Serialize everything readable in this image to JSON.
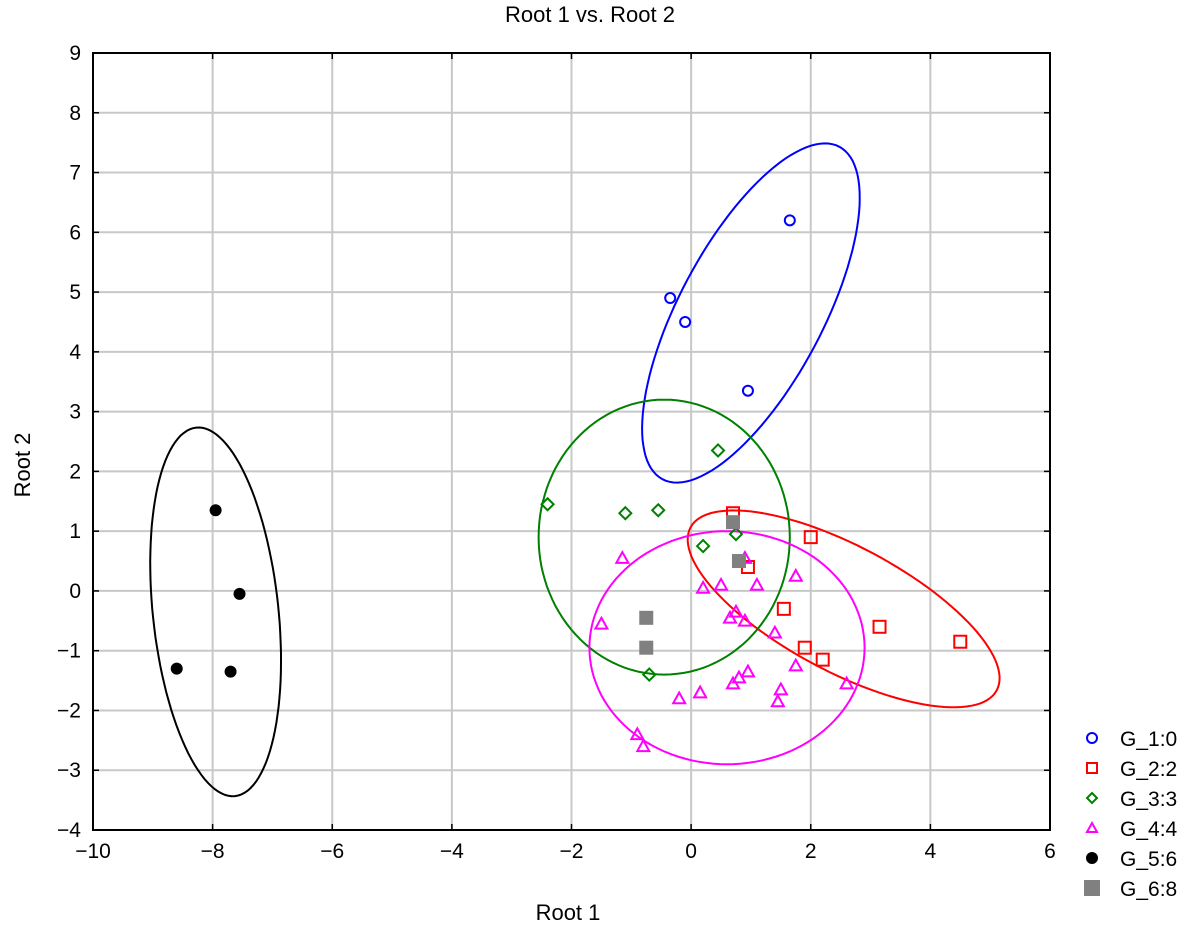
{
  "chart_data": {
    "type": "scatter",
    "title": "Root 1 vs. Root 2",
    "xlabel": "Root 1",
    "ylabel": "Root 2",
    "xlim": [
      -10,
      6
    ],
    "ylim": [
      -4,
      9
    ],
    "xticks": [
      -10,
      -8,
      -6,
      -4,
      -2,
      0,
      2,
      4,
      6
    ],
    "yticks": [
      -4,
      -3,
      -2,
      -1,
      0,
      1,
      2,
      3,
      4,
      5,
      6,
      7,
      8,
      9
    ],
    "grid": true,
    "legend_position": "bottom-right outside",
    "series": [
      {
        "name": "G_1:0",
        "color": "#0000ff",
        "marker": "circle",
        "filled": false,
        "points": [
          [
            -0.35,
            4.9
          ],
          [
            -0.1,
            4.5
          ],
          [
            0.95,
            3.35
          ],
          [
            1.65,
            6.2
          ]
        ],
        "ellipse": {
          "cx": 1.0,
          "cy": 4.65,
          "rx": 3.15,
          "ry": 1.2,
          "angle": 62
        }
      },
      {
        "name": "G_2:2",
        "color": "#ff0000",
        "marker": "square",
        "filled": false,
        "points": [
          [
            0.7,
            1.3
          ],
          [
            0.95,
            0.4
          ],
          [
            2.0,
            0.9
          ],
          [
            1.55,
            -0.3
          ],
          [
            1.9,
            -0.95
          ],
          [
            2.2,
            -1.15
          ],
          [
            3.15,
            -0.6
          ],
          [
            4.5,
            -0.85
          ]
        ],
        "ellipse": {
          "cx": 2.55,
          "cy": -0.3,
          "rx": 2.9,
          "ry": 1.05,
          "angle": -28
        }
      },
      {
        "name": "G_3:3",
        "color": "#008000",
        "marker": "diamond",
        "filled": false,
        "points": [
          [
            -2.4,
            1.45
          ],
          [
            -1.1,
            1.3
          ],
          [
            -0.55,
            1.35
          ],
          [
            0.45,
            2.35
          ],
          [
            0.2,
            0.75
          ],
          [
            0.75,
            0.95
          ],
          [
            -0.7,
            -1.4
          ]
        ],
        "ellipse": {
          "cx": -0.45,
          "cy": 0.9,
          "rx": 2.1,
          "ry": 2.3,
          "angle": 0
        }
      },
      {
        "name": "G_4:4",
        "color": "#ff00ff",
        "marker": "triangle",
        "filled": false,
        "points": [
          [
            -1.15,
            0.55
          ],
          [
            -1.5,
            -0.55
          ],
          [
            -0.9,
            -2.4
          ],
          [
            -0.8,
            -2.6
          ],
          [
            -0.2,
            -1.8
          ],
          [
            0.15,
            -1.7
          ],
          [
            0.2,
            0.05
          ],
          [
            0.5,
            0.1
          ],
          [
            0.65,
            -0.45
          ],
          [
            0.75,
            -0.35
          ],
          [
            0.9,
            -0.5
          ],
          [
            0.7,
            -1.55
          ],
          [
            0.8,
            -1.45
          ],
          [
            0.9,
            0.55
          ],
          [
            1.1,
            0.1
          ],
          [
            0.95,
            -1.35
          ],
          [
            1.4,
            -0.7
          ],
          [
            1.45,
            -1.85
          ],
          [
            1.5,
            -1.65
          ],
          [
            1.75,
            -1.25
          ],
          [
            1.75,
            0.25
          ],
          [
            2.6,
            -1.55
          ]
        ],
        "ellipse": {
          "cx": 0.6,
          "cy": -0.95,
          "rx": 2.3,
          "ry": 1.95,
          "angle": 0
        }
      },
      {
        "name": "G_5:6",
        "color": "#000000",
        "marker": "circle",
        "filled": true,
        "points": [
          [
            -7.95,
            1.35
          ],
          [
            -7.55,
            -0.05
          ],
          [
            -8.6,
            -1.3
          ],
          [
            -7.7,
            -1.35
          ]
        ],
        "ellipse": {
          "cx": -7.95,
          "cy": -0.35,
          "rx": 3.1,
          "ry": 1.05,
          "angle": -84
        }
      },
      {
        "name": "G_6:8",
        "color": "#808080",
        "marker": "square",
        "filled": true,
        "points": [
          [
            0.7,
            1.15
          ],
          [
            0.8,
            0.5
          ],
          [
            -0.75,
            -0.45
          ],
          [
            -0.75,
            -0.95
          ]
        ],
        "ellipse": null
      }
    ]
  }
}
